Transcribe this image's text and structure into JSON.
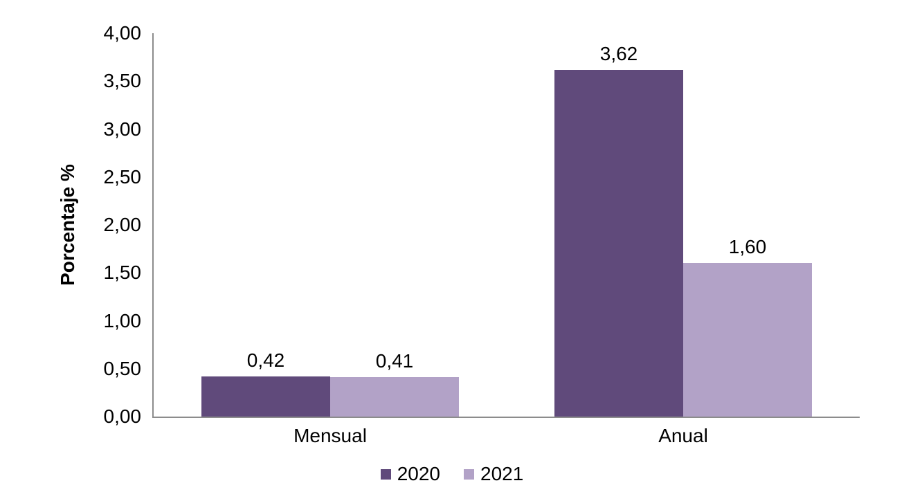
{
  "chart_data": {
    "type": "bar",
    "title": "",
    "categories": [
      "Mensual",
      "Anual"
    ],
    "series": [
      {
        "name": "2020",
        "color": "#604A7B",
        "values": [
          0.42,
          3.62
        ],
        "labels": [
          "0,42",
          "3,62"
        ]
      },
      {
        "name": "2021",
        "color": "#B2A2C7",
        "values": [
          0.41,
          1.6
        ],
        "labels": [
          "0,41",
          "1,60"
        ]
      }
    ],
    "xlabel": "",
    "ylabel": "Porcentaje %",
    "ylim": [
      0,
      4
    ],
    "yticks": [
      "0,00",
      "0,50",
      "1,00",
      "1,50",
      "2,00",
      "2,50",
      "3,00",
      "3,50",
      "4,00"
    ],
    "grid": false,
    "legend_position": "bottom",
    "axis_color": "#8C8C8C",
    "text_color": "#000000",
    "background": "#FFFFFF"
  }
}
